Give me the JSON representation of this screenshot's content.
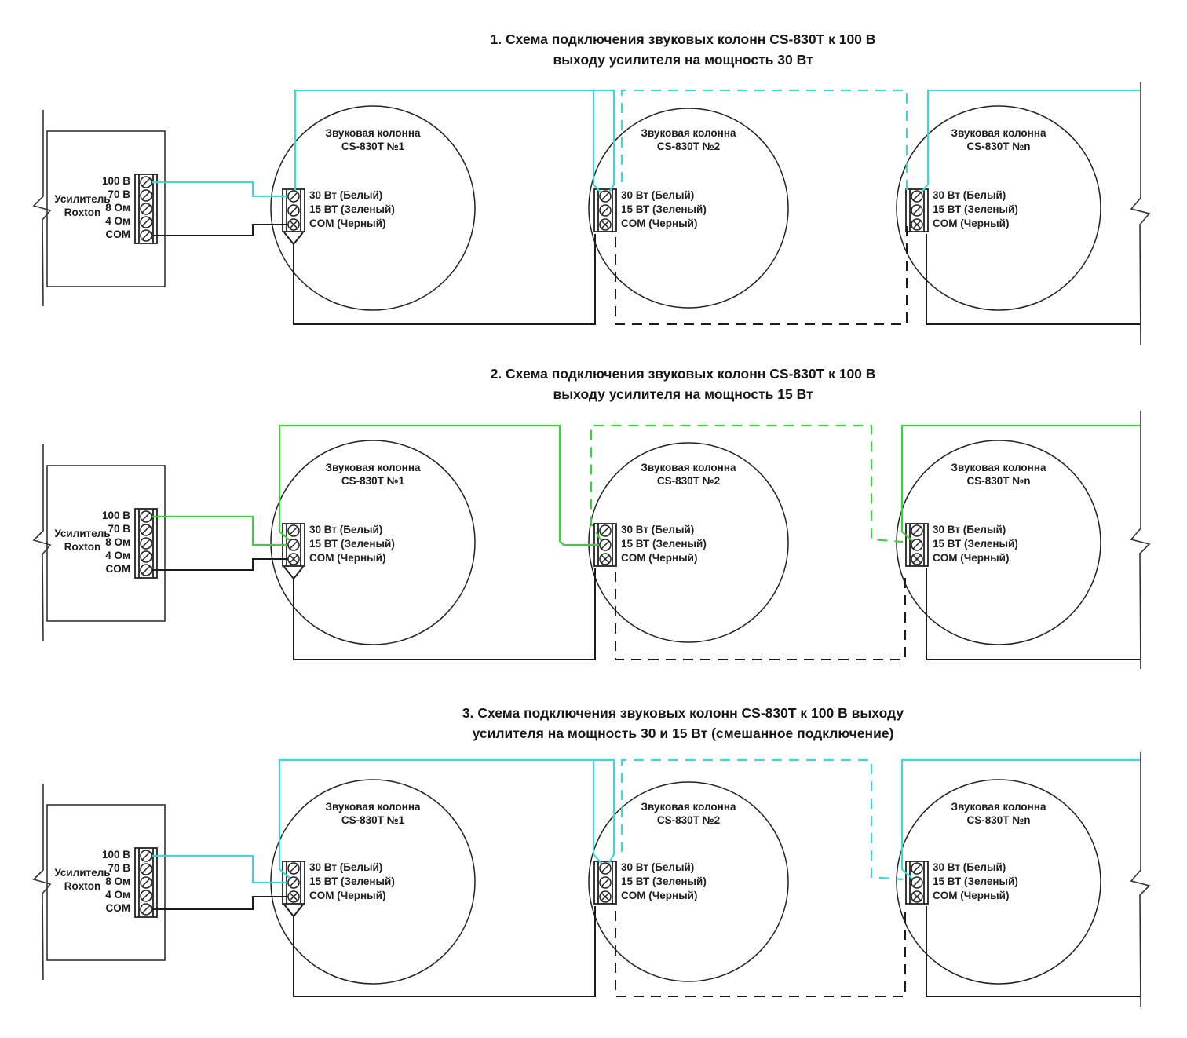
{
  "colors": {
    "common_wire": "#1a1a1a",
    "frame": "#333333",
    "cyan": "#3fd6d6",
    "green": "#3ecf3e"
  },
  "schemes": [
    {
      "title_line1": "1. Схема подключения звуковых колонн CS-830T к 100 В",
      "title_line2": "выходу усилителя на мощность 30 Вт",
      "hot_color": "#3fd6d6",
      "amp": {
        "line1": "Усилитель",
        "line2": "Roxton"
      },
      "amp_terminals": [
        "100 В",
        "70 В",
        "8 Ом",
        "4 Ом",
        "COM"
      ],
      "speaker_terminals": [
        "30 Вт (Белый)",
        "15 ВТ (Зеленый)",
        "COM (Черный)"
      ],
      "speakers": [
        {
          "line1": "Звуковая колонна",
          "line2": "CS-830T №1"
        },
        {
          "line1": "Звуковая колонна",
          "line2": "CS-830T №2"
        },
        {
          "line1": "Звуковая колонна",
          "line2": "CS-830T №n"
        }
      ]
    },
    {
      "title_line1": "2. Схема подключения звуковых колонн CS-830T к 100 В",
      "title_line2": "выходу усилителя на мощность 15 Вт",
      "hot_color": "#3ecf3e",
      "amp": {
        "line1": "Усилитель",
        "line2": "Roxton"
      },
      "amp_terminals": [
        "100 В",
        "70 В",
        "8 Ом",
        "4 Ом",
        "COM"
      ],
      "speaker_terminals": [
        "30 Вт (Белый)",
        "15 ВТ (Зеленый)",
        "COM (Черный)"
      ],
      "speakers": [
        {
          "line1": "Звуковая колонна",
          "line2": "CS-830T №1"
        },
        {
          "line1": "Звуковая колонна",
          "line2": "CS-830T №2"
        },
        {
          "line1": "Звуковая колонна",
          "line2": "CS-830T №n"
        }
      ]
    },
    {
      "title_line1": "3. Схема подключения звуковых колонн CS-830T к 100 В выходу",
      "title_line2": "усилителя на мощность 30 и 15 Вт (смешанное подключение)",
      "hot_color": "#3fd6d6",
      "amp": {
        "line1": "Усилитель",
        "line2": "Roxton"
      },
      "amp_terminals": [
        "100 В",
        "70 В",
        "8 Ом",
        "4 Ом",
        "COM"
      ],
      "speaker_terminals": [
        "30 Вт (Белый)",
        "15 ВТ (Зеленый)",
        "COM (Черный)"
      ],
      "speakers": [
        {
          "line1": "Звуковая колонна",
          "line2": "CS-830T №1"
        },
        {
          "line1": "Звуковая колонна",
          "line2": "CS-830T №2"
        },
        {
          "line1": "Звуковая колонна",
          "line2": "CS-830T №n"
        }
      ]
    }
  ]
}
